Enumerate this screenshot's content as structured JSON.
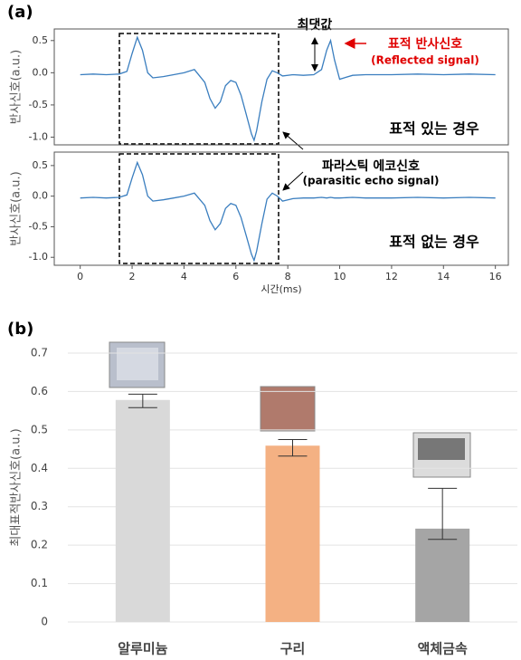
{
  "chart_data": [
    {
      "type": "line",
      "panel_label": "(a)",
      "y_label": "반사신호(a.u.)",
      "annotations": [
        "최댓값",
        "표적 반사신호",
        "(Reflected signal)",
        "표적 있는 경우"
      ],
      "x": [
        0,
        0.5,
        1,
        1.5,
        1.8,
        2.0,
        2.2,
        2.4,
        2.6,
        2.8,
        3.2,
        3.6,
        4.0,
        4.4,
        4.8,
        5.0,
        5.2,
        5.4,
        5.6,
        5.8,
        6.0,
        6.2,
        6.4,
        6.6,
        6.7,
        6.8,
        7.0,
        7.2,
        7.4,
        7.6,
        7.8,
        8.2,
        8.6,
        9.0,
        9.3,
        9.5,
        9.65,
        9.8,
        10.0,
        10.5,
        11,
        12,
        13,
        14,
        15,
        16
      ],
      "series": [
        {
          "color": "#3a7ebf",
          "values": [
            -0.03,
            -0.02,
            -0.03,
            -0.02,
            0.02,
            0.3,
            0.55,
            0.35,
            0.0,
            -0.08,
            -0.06,
            -0.03,
            0.0,
            0.05,
            -0.15,
            -0.4,
            -0.55,
            -0.45,
            -0.2,
            -0.12,
            -0.15,
            -0.35,
            -0.65,
            -0.95,
            -1.05,
            -0.9,
            -0.45,
            -0.1,
            0.03,
            0.0,
            -0.05,
            -0.03,
            -0.04,
            -0.03,
            0.05,
            0.35,
            0.5,
            0.2,
            -0.1,
            -0.04,
            -0.03,
            -0.03,
            -0.02,
            -0.03,
            -0.02,
            -0.03
          ]
        }
      ],
      "xlim": [
        -1,
        16.5
      ],
      "ylim": [
        -1.12,
        0.68
      ],
      "yticks": [
        {
          "value": -1,
          "label": "-1.0"
        },
        {
          "value": -0.5,
          "label": "-0.5"
        },
        {
          "value": 0,
          "label": "0.0"
        },
        {
          "value": 0.5,
          "label": "0.5"
        }
      ]
    },
    {
      "type": "line",
      "y_label": "반사신호(a.u.)",
      "x_label": "시간(ms)",
      "annotations": [
        "파라스틱 에코신호",
        "(parasitic echo signal)",
        "표적 없는 경우"
      ],
      "x": [
        0,
        0.5,
        1,
        1.5,
        1.8,
        2.0,
        2.2,
        2.4,
        2.6,
        2.8,
        3.2,
        3.6,
        4.0,
        4.4,
        4.8,
        5.0,
        5.2,
        5.4,
        5.6,
        5.8,
        6.0,
        6.2,
        6.4,
        6.6,
        6.7,
        6.8,
        7.0,
        7.2,
        7.4,
        7.6,
        7.8,
        8.2,
        8.6,
        9.0,
        9.3,
        9.5,
        9.65,
        9.8,
        10.0,
        10.5,
        11,
        12,
        13,
        14,
        15,
        16
      ],
      "series": [
        {
          "color": "#3a7ebf",
          "values": [
            -0.03,
            -0.02,
            -0.03,
            -0.02,
            0.02,
            0.3,
            0.55,
            0.35,
            0.0,
            -0.08,
            -0.06,
            -0.03,
            0.0,
            0.05,
            -0.15,
            -0.4,
            -0.55,
            -0.45,
            -0.2,
            -0.12,
            -0.15,
            -0.35,
            -0.65,
            -0.95,
            -1.05,
            -0.9,
            -0.45,
            -0.05,
            0.05,
            0.0,
            -0.08,
            -0.04,
            -0.03,
            -0.03,
            -0.02,
            -0.03,
            -0.02,
            -0.03,
            -0.03,
            -0.02,
            -0.03,
            -0.03,
            -0.02,
            -0.03,
            -0.02,
            -0.03
          ]
        }
      ],
      "xlim": [
        -1,
        16.5
      ],
      "ylim": [
        -1.13,
        0.72
      ],
      "xticks": [
        0,
        2,
        4,
        6,
        8,
        10,
        12,
        14,
        16
      ],
      "yticks": [
        {
          "value": -1,
          "label": "-1.0"
        },
        {
          "value": -0.5,
          "label": "-0.5"
        },
        {
          "value": 0,
          "label": "0.0"
        },
        {
          "value": 0.5,
          "label": "0.5"
        }
      ]
    },
    {
      "type": "bar",
      "panel_label": "(b)",
      "y_label": "최대표적반사신호(a.u.)",
      "categories": [
        "알루미늄",
        "구리",
        "액체금속"
      ],
      "values": [
        0.578,
        0.459,
        0.243
      ],
      "error_minus": [
        0.02,
        0.027,
        0.028
      ],
      "error_plus": [
        0.015,
        0.016,
        0.105
      ],
      "colors": [
        "#d9d9d9",
        "#f4b183",
        "#a5a5a5"
      ],
      "ylim": [
        0,
        0.7
      ],
      "yticks": [
        0,
        0.1,
        0.2,
        0.3,
        0.4,
        0.5,
        0.6,
        0.7
      ],
      "grid": true
    }
  ]
}
